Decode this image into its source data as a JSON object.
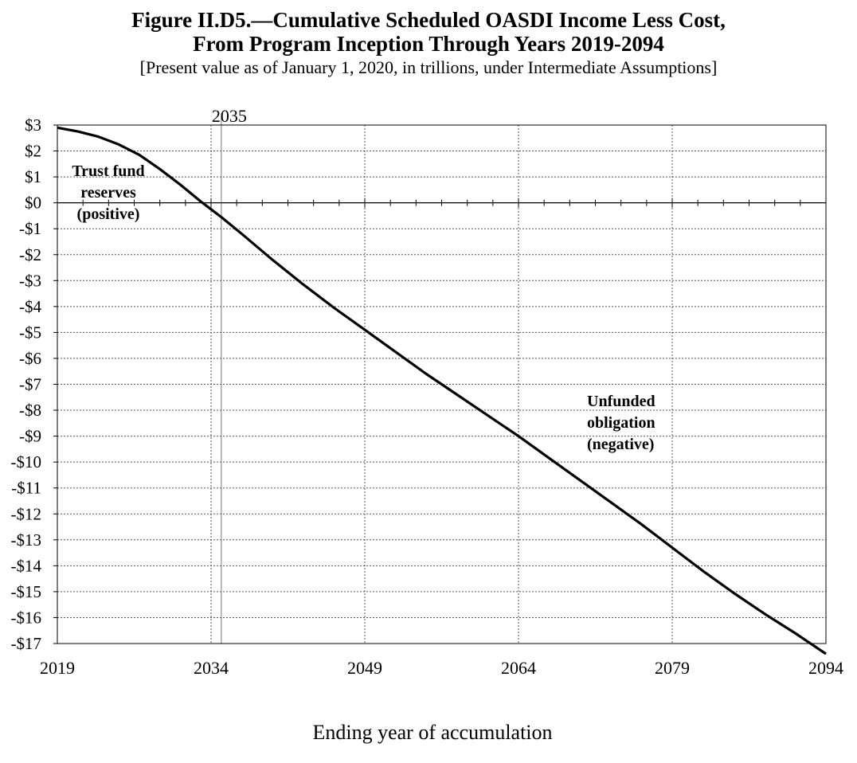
{
  "header": {
    "title_line1": "Figure II.D5.—Cumulative Scheduled OASDI Income Less Cost,",
    "title_line2": "From Program Inception Through Years 2019-2094",
    "subtitle": "[Present value as of January 1, 2020, in trillions, under Intermediate Assumptions]"
  },
  "chart_data": {
    "type": "line",
    "title": "Figure II.D5.—Cumulative Scheduled OASDI Income Less Cost, From Program Inception Through Years 2019-2094",
    "subtitle": "[Present value as of January 1, 2020, in trillions, under Intermediate Assumptions]",
    "xlabel": "Ending year of accumulation",
    "ylabel": "",
    "xlim": [
      2019,
      2094
    ],
    "ylim": [
      -17,
      3
    ],
    "x_ticks": [
      2019,
      2034,
      2049,
      2064,
      2079,
      2094
    ],
    "y_ticks": [
      3,
      2,
      1,
      0,
      -1,
      -2,
      -3,
      -4,
      -5,
      -6,
      -7,
      -8,
      -9,
      -10,
      -11,
      -12,
      -13,
      -14,
      -15,
      -16,
      -17
    ],
    "y_tick_labels": [
      "$3",
      "$2",
      "$1",
      "$0",
      "-$1",
      "-$2",
      "-$3",
      "-$4",
      "-$5",
      "-$6",
      "-$7",
      "-$8",
      "-$9",
      "-$10",
      "-$11",
      "-$12",
      "-$13",
      "-$14",
      "-$15",
      "-$16",
      "-$17"
    ],
    "grid": "dashed",
    "reference_line": {
      "x": 2035,
      "label": "2035"
    },
    "annotations": [
      {
        "lines": [
          "Trust fund",
          "reserves",
          "(positive)"
        ]
      },
      {
        "lines": [
          "Unfunded",
          "obligation",
          "(negative)"
        ]
      }
    ],
    "series": [
      {
        "x": [
          2019,
          2021,
          2023,
          2025,
          2027,
          2029,
          2031,
          2033,
          2034,
          2035,
          2037,
          2040,
          2043,
          2046,
          2049,
          2052,
          2055,
          2058,
          2061,
          2064,
          2067,
          2070,
          2073,
          2076,
          2079,
          2082,
          2085,
          2088,
          2091,
          2094
        ],
        "values": [
          2.9,
          2.75,
          2.55,
          2.25,
          1.85,
          1.3,
          0.7,
          0.05,
          -0.25,
          -0.55,
          -1.2,
          -2.2,
          -3.15,
          -4.05,
          -4.9,
          -5.75,
          -6.6,
          -7.4,
          -8.2,
          -9.0,
          -9.85,
          -10.7,
          -11.55,
          -12.4,
          -13.3,
          -14.2,
          -15.05,
          -15.85,
          -16.6,
          -17.4
        ]
      }
    ]
  }
}
